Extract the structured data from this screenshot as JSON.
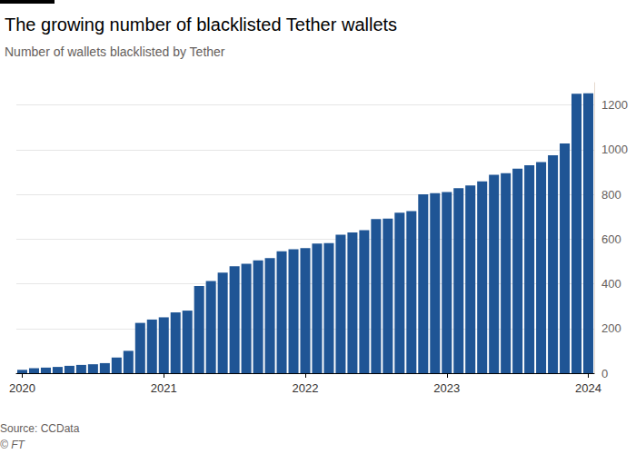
{
  "chart_data": {
    "type": "bar",
    "title": "The growing number of blacklisted Tether wallets",
    "subtitle": "Number of wallets blacklisted by Tether",
    "source": "Source: CCData",
    "credit": "© FT",
    "categories": [
      "2020",
      null,
      null,
      null,
      null,
      null,
      null,
      null,
      null,
      null,
      null,
      null,
      "2021",
      null,
      null,
      null,
      null,
      null,
      null,
      null,
      null,
      null,
      null,
      null,
      "2022",
      null,
      null,
      null,
      null,
      null,
      null,
      null,
      null,
      null,
      null,
      null,
      "2023",
      null,
      null,
      null,
      null,
      null,
      null,
      null,
      null,
      null,
      null,
      null,
      "2024"
    ],
    "values": [
      15,
      22,
      25,
      28,
      33,
      37,
      40,
      45,
      70,
      100,
      225,
      240,
      250,
      272,
      280,
      390,
      412,
      450,
      478,
      490,
      505,
      515,
      545,
      555,
      560,
      580,
      582,
      620,
      630,
      640,
      690,
      692,
      718,
      725,
      800,
      805,
      810,
      828,
      840,
      858,
      888,
      895,
      915,
      930,
      945,
      975,
      1028,
      1250,
      1252
    ],
    "color": "#1f5595",
    "ylim": [
      0,
      1300
    ],
    "yticks": [
      0,
      200,
      400,
      600,
      800,
      1000,
      1200
    ],
    "grid": true
  }
}
